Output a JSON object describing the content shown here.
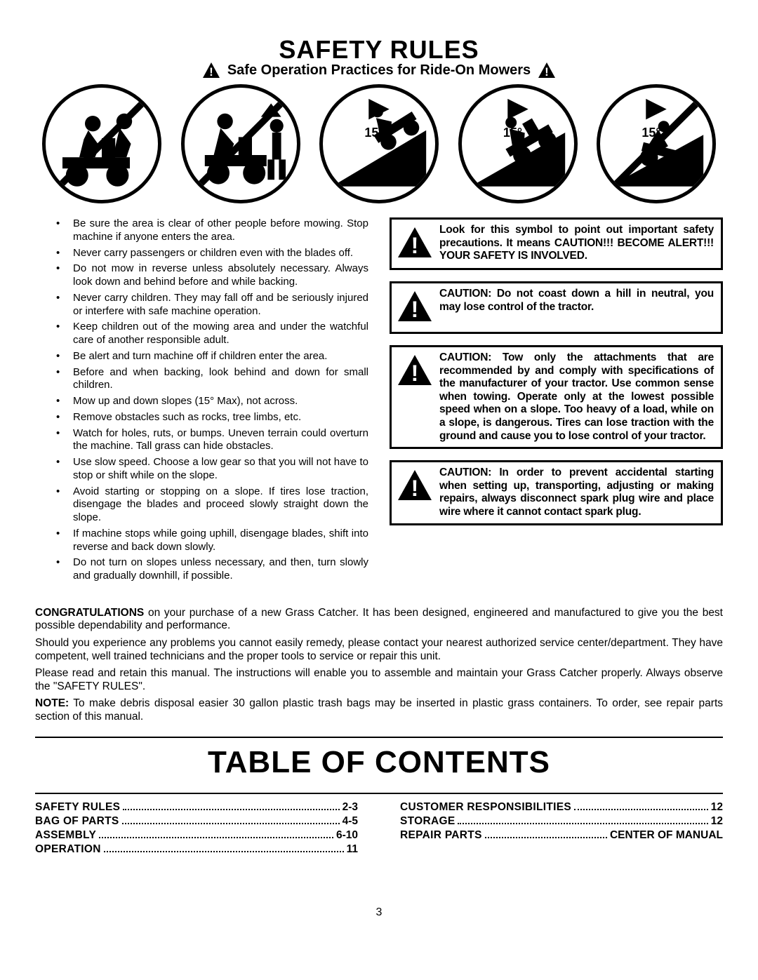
{
  "title": "SAFETY RULES",
  "subtitle": "Safe Operation Practices for Ride-On Mowers",
  "angle_labels": [
    "15°",
    "15°",
    "15°"
  ],
  "bullets": [
    "Be sure the area is clear of other people before mowing. Stop machine if anyone enters the area.",
    "Never carry passengers or children even with the blades off.",
    "Do not mow in reverse unless absolutely necessary. Always look down and behind before and while backing.",
    "Never carry children. They may fall off and be seriously injured or interfere with safe machine operation.",
    "Keep children out of the mowing area and under the watchful care of another responsible adult.",
    "Be alert and turn machine off if children enter the area.",
    "Before and when backing, look behind and down for small children.",
    "Mow up and down slopes (15° Max), not across.",
    "Remove obstacles such as rocks, tree limbs, etc.",
    "Watch for holes, ruts, or bumps. Uneven terrain could overturn the machine. Tall grass can hide obstacles.",
    "Use slow speed. Choose a low gear so that you will not have to stop or shift while on the slope.",
    "Avoid starting or stopping on a slope. If tires lose traction, disengage the blades and proceed slowly straight down the slope.",
    "If machine stops while going uphill, disengage blades, shift into reverse and back down slowly.",
    "Do not turn on slopes unless necessary, and then, turn slowly and gradually downhill, if possible."
  ],
  "cautions": [
    "Look for this symbol to point out important safety precautions. It means CAUTION!!!   BECOME ALERT!!!  YOUR SAFETY IS INVOLVED.",
    "CAUTION:  Do not coast down a hill in neutral, you may lose control of the tractor.",
    "CAUTION:  Tow only the attachments that are recommended by and comply with specifications of the manufacturer of your tractor.  Use common sense when towing.  Operate only at the lowest possible speed when on a slope.  Too heavy of a load, while on a slope, is dangerous.  Tires can lose traction with the ground and cause you to lose control of your tractor.",
    "CAUTION:  In order to prevent accidental starting when setting up, transporting, adjusting or making repairs, always disconnect spark plug wire and place wire where it cannot contact spark plug."
  ],
  "congrats": {
    "p1_prefix": "CONGRATULATIONS",
    "p1": " on your purchase of a new Grass Catcher. It has been designed, engineered and manufactured to give you the best possible dependability and performance.",
    "p2": "Should you experience any problems you cannot easily remedy, please contact your nearest authorized service center/department. They have competent, well trained technicians and the proper tools to service or repair this unit.",
    "p3": "Please read and retain this manual. The instructions will enable you to assemble and maintain your Grass Catcher properly. Always observe the \"SAFETY RULES\".",
    "p4_prefix": "NOTE:",
    "p4": "  To make debris disposal easier 30 gallon plastic trash bags may be inserted in plastic grass containers. To order, see repair parts section of this manual."
  },
  "toc_title": "TABLE OF CONTENTS",
  "toc_left": [
    {
      "label": "SAFETY RULES",
      "page": "2-3"
    },
    {
      "label": "BAG OF PARTS",
      "page": "4-5"
    },
    {
      "label": "ASSEMBLY",
      "page": "6-10"
    },
    {
      "label": "OPERATION",
      "page": "11"
    }
  ],
  "toc_right": [
    {
      "label": "CUSTOMER RESPONSIBILITIES",
      "page": "12"
    },
    {
      "label": "STORAGE",
      "page": "12"
    },
    {
      "label": "REPAIR PARTS",
      "page": "CENTER OF MANUAL"
    }
  ],
  "page_number": "3"
}
